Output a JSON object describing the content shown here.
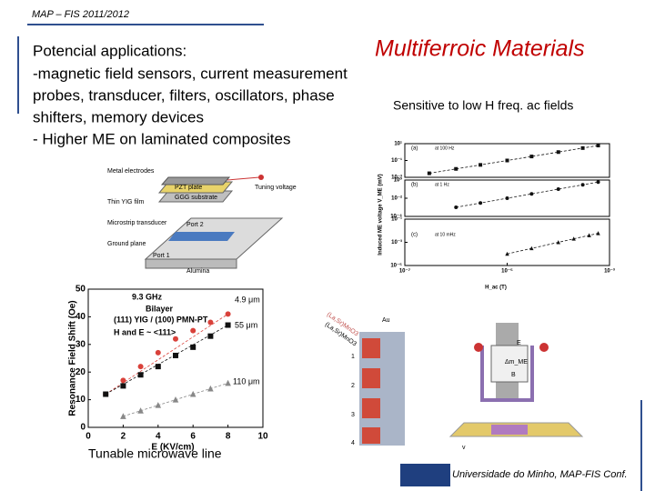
{
  "header": "MAP – FIS 2011/2012",
  "title": "Multiferroic Materials",
  "applications": {
    "heading": "Potencial applications:",
    "lines": [
      "-magnetic field sensors, current measurement",
      "probes, transducer, filters, oscillators, phase",
      "shifters, memory devices",
      "- Higher ME on laminated composites"
    ]
  },
  "caption_right": "Sensitive to low H freq. ac fields",
  "caption_bottom": "Tunable microwave line",
  "footer": "Universidade do Minho, MAP-FIS Conf.",
  "device_figure": {
    "labels": [
      "Metal electrodes",
      "Thin YIG film",
      "Microstrip transducer",
      "Ground plane",
      "PZT plate",
      "GGG substrate",
      "Tuning voltage",
      "Port 2",
      "Port 1",
      "Alumina"
    ]
  },
  "layer_figure": {
    "labels": [
      "(La,Sr)MnO3",
      "Au",
      "(La,Sr)MnO3"
    ],
    "numbers": [
      "1",
      "2",
      "3",
      "4"
    ]
  },
  "antenna_figure": {
    "labels": [
      "E",
      "Δm_ME",
      "B",
      "v"
    ]
  },
  "chart_data": [
    {
      "type": "scatter",
      "annotations": [
        "9.3 GHz",
        "Bilayer",
        "(111) YIG / (100) PMN-PT",
        "H and E ~ <111>"
      ],
      "x_label": "E (KV/cm)",
      "y_label": "Resonance Field Shift (Oe)",
      "xlim": [
        0,
        10
      ],
      "ylim": [
        0,
        50
      ],
      "xticks": [
        0,
        2,
        4,
        6,
        8,
        10
      ],
      "yticks": [
        0,
        10,
        20,
        30,
        40,
        50
      ],
      "series": [
        {
          "name": "4.9 μm",
          "color": "#d9413a",
          "marker": "circle",
          "x": [
            1,
            2,
            3,
            4,
            5,
            6,
            7,
            8
          ],
          "values": [
            12,
            17,
            22,
            27,
            32,
            35,
            38,
            41
          ]
        },
        {
          "name": "55 μm",
          "color": "#111111",
          "marker": "square",
          "x": [
            1,
            2,
            3,
            4,
            5,
            6,
            7,
            8
          ],
          "values": [
            12,
            15,
            19,
            22,
            26,
            29,
            33,
            37
          ]
        },
        {
          "name": "110 μm",
          "color": "#888888",
          "marker": "triangle",
          "x": [
            2,
            3,
            4,
            5,
            6,
            7,
            8
          ],
          "values": [
            4,
            6,
            8,
            10,
            12,
            14,
            16
          ]
        }
      ]
    },
    {
      "type": "scatter",
      "log_x": true,
      "log_y": true,
      "panel_label": "(a)",
      "y_label": "Induced ME voltage V_ME (mV)",
      "xlim": [
        1e-07,
        0.001
      ],
      "ylim": [
        0.001,
        10.0
      ],
      "yticks": [
        {
          "value": 10,
          "label": "10¹"
        },
        {
          "value": 0.1,
          "label": "10⁻¹"
        },
        {
          "value": 0.001,
          "label": "10⁻³"
        }
      ],
      "series": [
        {
          "name": "at 100 Hz",
          "color": "#111111",
          "marker": "square",
          "x": [
            3e-07,
            1e-06,
            3e-06,
            1e-05,
            3e-05,
            0.0001,
            0.0003,
            0.0006
          ],
          "values": [
            0.003,
            0.01,
            0.03,
            0.1,
            0.3,
            1,
            3,
            6
          ]
        }
      ]
    },
    {
      "type": "scatter",
      "log_x": true,
      "log_y": true,
      "panel_label": "(b)",
      "xlim": [
        1e-07,
        0.001
      ],
      "ylim": [
        0.0001,
        1
      ],
      "yticks": [
        {
          "value": 1,
          "label": "10⁰"
        },
        {
          "value": 0.01,
          "label": "10⁻²"
        },
        {
          "value": 0.0001,
          "label": "10⁻⁴"
        }
      ],
      "series": [
        {
          "name": "at 1 Hz",
          "color": "#111111",
          "marker": "circle",
          "x": [
            1e-06,
            3e-06,
            1e-05,
            3e-05,
            0.0001,
            0.0003,
            0.0006
          ],
          "values": [
            0.001,
            0.003,
            0.01,
            0.03,
            0.1,
            0.3,
            0.6
          ]
        }
      ]
    },
    {
      "type": "scatter",
      "log_x": true,
      "log_y": true,
      "panel_label": "(c)",
      "x_label": "H_ac (T)",
      "xlim": [
        1e-07,
        0.001
      ],
      "ylim": [
        1e-05,
        0.1
      ],
      "xticks": [
        {
          "value": 1e-07,
          "label": "10⁻⁷"
        },
        {
          "value": 1e-05,
          "label": "10⁻⁵"
        },
        {
          "value": 0.001,
          "label": "10⁻³"
        }
      ],
      "yticks": [
        {
          "value": 0.1,
          "label": "10⁻¹"
        },
        {
          "value": 0.001,
          "label": "10⁻³"
        },
        {
          "value": 1e-05,
          "label": "10⁻⁵"
        }
      ],
      "series": [
        {
          "name": "at 10 mHz",
          "color": "#111111",
          "marker": "triangle",
          "x": [
            1e-05,
            3e-05,
            0.0001,
            0.0002,
            0.0004,
            0.0006
          ],
          "values": [
            0.0001,
            0.0003,
            0.001,
            0.002,
            0.004,
            0.006
          ]
        }
      ]
    }
  ]
}
